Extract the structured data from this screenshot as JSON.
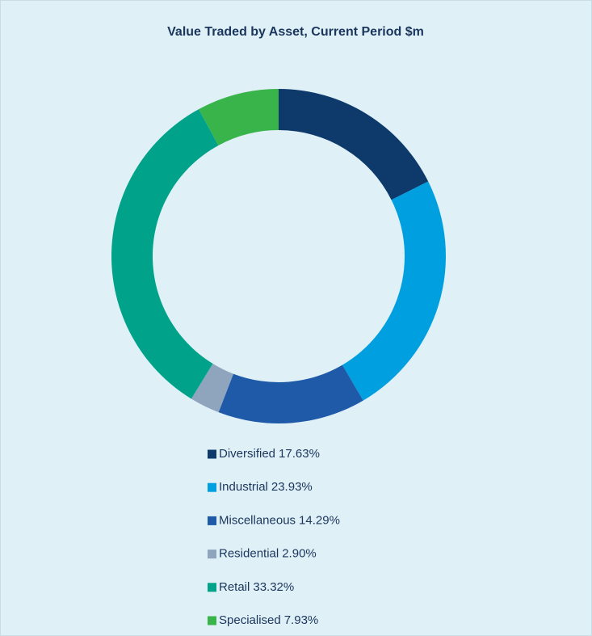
{
  "chart_data": {
    "type": "donut",
    "title": "Value Traded by Asset, Current Period $m",
    "categories": [
      "Diversified",
      "Industrial",
      "Miscellaneous",
      "Residential",
      "Retail",
      "Specialised"
    ],
    "values": [
      17.63,
      23.93,
      14.29,
      2.9,
      33.32,
      7.93
    ],
    "value_labels": [
      "17.63%",
      "23.93%",
      "14.29%",
      "2.90%",
      "33.32%",
      "7.93%"
    ],
    "colors": [
      "#0d3a6b",
      "#009fdf",
      "#1f5aa8",
      "#8fa5bd",
      "#00a389",
      "#39b44a"
    ],
    "legend": "bottom"
  }
}
